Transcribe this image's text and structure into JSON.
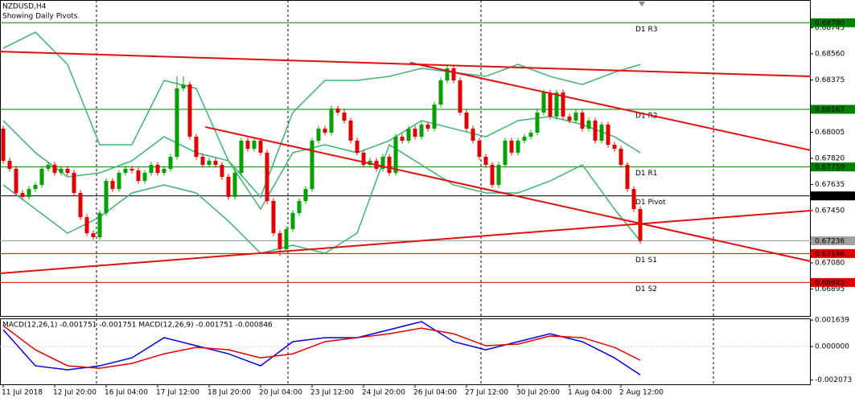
{
  "chart_data": {
    "type": "candlestick",
    "title": "NZDUSD,H4",
    "subtitle": "Showing Daily Pivots.",
    "categories": [
      "11 Jul 2018",
      null,
      null,
      null,
      null,
      null,
      null,
      null,
      "12 Jul 20:00",
      null,
      null,
      null,
      null,
      null,
      null,
      null,
      "16 Jul 04:00",
      null,
      null,
      null,
      null,
      null,
      null,
      null,
      "17 Jul 12:00",
      null,
      null,
      null,
      null,
      null,
      null,
      null,
      "18 Jul 20:00",
      null,
      null,
      null,
      null,
      null,
      null,
      null,
      "20 Jul 04:00",
      null,
      null,
      null,
      null,
      null,
      null,
      null,
      "23 Jul 12:00",
      null,
      null,
      null,
      null,
      null,
      null,
      null,
      "24 Jul 20:00",
      null,
      null,
      null,
      null,
      null,
      null,
      null,
      "26 Jul 04:00",
      null,
      null,
      null,
      null,
      null,
      null,
      null,
      "27 Jul 12:00",
      null,
      null,
      null,
      null,
      null,
      null,
      null,
      "30 Jul 20:00",
      null,
      null,
      null,
      null,
      null,
      null,
      null,
      "1 Aug 04:00",
      null,
      null,
      null,
      null,
      null,
      null,
      null,
      "2 Aug 12:00",
      null,
      null,
      null
    ],
    "xlim": [
      -0.5,
      125.5
    ],
    "ylim": [
      0.66704,
      0.68941
    ],
    "yticks": [
      0.68745,
      {
        "value": 0.6856,
        "label": "0.68560"
      },
      0.68375,
      0.68005,
      {
        "value": 0.6782,
        "label": "0.67820"
      },
      0.67635,
      {
        "value": 0.6745,
        "label": "0.67450"
      },
      {
        "value": 0.6708,
        "label": "0.67080"
      },
      0.66895
    ],
    "up_color": "#00a000",
    "down_color": "#e00000",
    "candles": [
      [
        0.6803,
        0.6805,
        0.67783,
        0.67803
      ],
      [
        0.67803,
        0.67823,
        0.67726,
        0.67746
      ],
      [
        0.67746,
        0.67766,
        0.67555,
        0.67575
      ],
      [
        0.67575,
        0.67595,
        0.67527,
        0.67547
      ],
      [
        0.67547,
        0.67623,
        0.67527,
        0.67603
      ],
      [
        0.67603,
        0.67652,
        0.67583,
        0.67632
      ],
      [
        0.67632,
        0.67766,
        0.67612,
        0.67746
      ],
      [
        0.67746,
        0.67794,
        0.67726,
        0.67774
      ],
      [
        0.67774,
        0.67794,
        0.67697,
        0.67717
      ],
      [
        0.67717,
        0.67766,
        0.67697,
        0.67746
      ],
      [
        0.67746,
        0.67766,
        0.67697,
        0.67717
      ],
      [
        0.67717,
        0.67737,
        0.67555,
        0.67575
      ],
      [
        0.67575,
        0.67595,
        0.67384,
        0.67404
      ],
      [
        0.67404,
        0.67424,
        0.6727,
        0.6729
      ],
      [
        0.6729,
        0.6731,
        0.67242,
        0.67262
      ],
      [
        0.67262,
        0.67453,
        0.67242,
        0.67433
      ],
      [
        0.67433,
        0.6768,
        0.67413,
        0.6766
      ],
      [
        0.6766,
        0.6768,
        0.67583,
        0.67603
      ],
      [
        0.67603,
        0.67737,
        0.67583,
        0.67717
      ],
      [
        0.67717,
        0.67766,
        0.67697,
        0.67746
      ],
      [
        0.67746,
        0.67766,
        0.67714,
        0.67734
      ],
      [
        0.67734,
        0.67754,
        0.6764,
        0.6766
      ],
      [
        0.6766,
        0.67737,
        0.6764,
        0.67717
      ],
      [
        0.67717,
        0.67794,
        0.67697,
        0.67774
      ],
      [
        0.67774,
        0.67794,
        0.67697,
        0.67717
      ],
      [
        0.67717,
        0.67766,
        0.67697,
        0.67746
      ],
      [
        0.67746,
        0.67851,
        0.67726,
        0.67831
      ],
      [
        0.67831,
        0.684,
        0.67811,
        0.68315
      ],
      [
        0.68315,
        0.684,
        0.68295,
        0.68343
      ],
      [
        0.68343,
        0.68363,
        0.67953,
        0.67973
      ],
      [
        0.67973,
        0.67993,
        0.67811,
        0.67831
      ],
      [
        0.67831,
        0.67851,
        0.67754,
        0.67774
      ],
      [
        0.67774,
        0.67823,
        0.67754,
        0.67803
      ],
      [
        0.67803,
        0.67823,
        0.67754,
        0.67774
      ],
      [
        0.67774,
        0.67794,
        0.67669,
        0.67689
      ],
      [
        0.67689,
        0.67709,
        0.67527,
        0.67547
      ],
      [
        0.67547,
        0.67737,
        0.67527,
        0.67717
      ],
      [
        0.67717,
        0.67965,
        0.67697,
        0.67945
      ],
      [
        0.67945,
        0.67965,
        0.67868,
        0.67888
      ],
      [
        0.67888,
        0.67965,
        0.67868,
        0.67945
      ],
      [
        0.67945,
        0.67965,
        0.6784,
        0.6786
      ],
      [
        0.6786,
        0.6788,
        0.67498,
        0.67518
      ],
      [
        0.67518,
        0.67538,
        0.6727,
        0.6729
      ],
      [
        0.6729,
        0.6731,
        0.6713,
        0.67177
      ],
      [
        0.67177,
        0.67339,
        0.67157,
        0.67319
      ],
      [
        0.67319,
        0.67453,
        0.67299,
        0.67433
      ],
      [
        0.67433,
        0.67538,
        0.67413,
        0.67518
      ],
      [
        0.67518,
        0.67623,
        0.67498,
        0.67603
      ],
      [
        0.67603,
        0.67965,
        0.67583,
        0.67945
      ],
      [
        0.67945,
        0.6805,
        0.67925,
        0.6803
      ],
      [
        0.6803,
        0.6805,
        0.67982,
        0.68002
      ],
      [
        0.68002,
        0.68192,
        0.67982,
        0.68172
      ],
      [
        0.68172,
        0.68192,
        0.68124,
        0.68144
      ],
      [
        0.68144,
        0.68164,
        0.68067,
        0.68087
      ],
      [
        0.68087,
        0.68107,
        0.67925,
        0.67945
      ],
      [
        0.67945,
        0.67965,
        0.6784,
        0.6786
      ],
      [
        0.6786,
        0.6788,
        0.67754,
        0.67774
      ],
      [
        0.67774,
        0.67823,
        0.67754,
        0.67803
      ],
      [
        0.67803,
        0.67823,
        0.67726,
        0.67746
      ],
      [
        0.67746,
        0.67851,
        0.67726,
        0.67831
      ],
      [
        0.67831,
        0.67851,
        0.67697,
        0.67717
      ],
      [
        0.67717,
        0.67993,
        0.67697,
        0.67973
      ],
      [
        0.67973,
        0.67993,
        0.67925,
        0.67945
      ],
      [
        0.67945,
        0.6805,
        0.67925,
        0.6803
      ],
      [
        0.6803,
        0.6805,
        0.67953,
        0.67973
      ],
      [
        0.67973,
        0.68079,
        0.67953,
        0.68059
      ],
      [
        0.68059,
        0.68079,
        0.6801,
        0.6803
      ],
      [
        0.6803,
        0.68221,
        0.6801,
        0.68201
      ],
      [
        0.68201,
        0.68392,
        0.68181,
        0.68372
      ],
      [
        0.68372,
        0.68477,
        0.68352,
        0.68457
      ],
      [
        0.68457,
        0.68477,
        0.68352,
        0.68372
      ],
      [
        0.68372,
        0.68392,
        0.68124,
        0.68144
      ],
      [
        0.68144,
        0.68164,
        0.6801,
        0.6803
      ],
      [
        0.6803,
        0.6805,
        0.67925,
        0.67945
      ],
      [
        0.67945,
        0.67965,
        0.67811,
        0.67831
      ],
      [
        0.67831,
        0.67851,
        0.67754,
        0.67774
      ],
      [
        0.67774,
        0.67794,
        0.67612,
        0.67632
      ],
      [
        0.67632,
        0.67794,
        0.67612,
        0.67774
      ],
      [
        0.67774,
        0.67965,
        0.67754,
        0.67945
      ],
      [
        0.67945,
        0.67965,
        0.6784,
        0.6786
      ],
      [
        0.6786,
        0.67965,
        0.6784,
        0.67945
      ],
      [
        0.67945,
        0.67993,
        0.67925,
        0.67973
      ],
      [
        0.67973,
        0.68022,
        0.67953,
        0.68002
      ],
      [
        0.68002,
        0.68164,
        0.67982,
        0.68144
      ],
      [
        0.68144,
        0.68306,
        0.68124,
        0.68286
      ],
      [
        0.68286,
        0.68306,
        0.68096,
        0.68116
      ],
      [
        0.68116,
        0.68306,
        0.68096,
        0.68286
      ],
      [
        0.68286,
        0.68306,
        0.68096,
        0.68116
      ],
      [
        0.68116,
        0.68136,
        0.68067,
        0.68087
      ],
      [
        0.68087,
        0.68164,
        0.68067,
        0.68144
      ],
      [
        0.68144,
        0.68164,
        0.6801,
        0.6803
      ],
      [
        0.6803,
        0.68107,
        0.6801,
        0.68087
      ],
      [
        0.68087,
        0.68107,
        0.67925,
        0.67945
      ],
      [
        0.67945,
        0.68079,
        0.67925,
        0.68059
      ],
      [
        0.68059,
        0.68079,
        0.67896,
        0.67916
      ],
      [
        0.67916,
        0.67936,
        0.67868,
        0.67888
      ],
      [
        0.67888,
        0.67908,
        0.67754,
        0.67774
      ],
      [
        0.67774,
        0.67794,
        0.67583,
        0.67603
      ],
      [
        0.67603,
        0.67623,
        0.67441,
        0.67461
      ],
      [
        0.67461,
        0.67481,
        0.67216,
        0.67236
      ]
    ],
    "bollinger": {
      "color": "#3cb371",
      "x": [
        0,
        5,
        10,
        15,
        20,
        25,
        30,
        35,
        40,
        45,
        50,
        55,
        60,
        65,
        70,
        75,
        80,
        85,
        90,
        95,
        99
      ],
      "upper": [
        0.68599,
        0.68713,
        0.68485,
        0.67916,
        0.67916,
        0.68372,
        0.68315,
        0.67803,
        0.67547,
        0.68144,
        0.68372,
        0.68372,
        0.684,
        0.68457,
        0.68429,
        0.684,
        0.68485,
        0.684,
        0.68343,
        0.68429,
        0.68485
      ],
      "middle": [
        0.68087,
        0.6786,
        0.67689,
        0.67717,
        0.67803,
        0.67973,
        0.6786,
        0.67803,
        0.67461,
        0.6786,
        0.67916,
        0.6786,
        0.67945,
        0.68087,
        0.6803,
        0.67973,
        0.68087,
        0.68116,
        0.68059,
        0.67973,
        0.6786
      ],
      "lower": [
        0.67632,
        0.67461,
        0.6729,
        0.67404,
        0.67575,
        0.67632,
        0.67575,
        0.67376,
        0.67148,
        0.67205,
        0.67148,
        0.6729,
        0.67916,
        0.67774,
        0.67632,
        0.67575,
        0.67575,
        0.6766,
        0.67774,
        0.67461,
        0.67234
      ]
    },
    "trendline_color": "#e01010",
    "trendlines": [
      {
        "x": [
          -0.5,
          125.5
        ],
        "y": [
          0.68576,
          0.684
        ]
      },
      {
        "x": [
          31.4,
          125.5
        ],
        "y": [
          0.68042,
          0.67091
        ]
      },
      {
        "x": [
          -0.5,
          125.5
        ],
        "y": [
          0.67006,
          0.6745
        ]
      },
      {
        "x": [
          63.25,
          125.5
        ],
        "y": [
          0.68497,
          0.67877
        ]
      }
    ],
    "pivots": [
      {
        "name": "D1 R3",
        "value": 0.6878,
        "label": "0.68780",
        "color": "#008000"
      },
      {
        "name": "D1 R2",
        "value": 0.68167,
        "label": "0.68167",
        "color": "#008000"
      },
      {
        "name": "D1 R1",
        "value": 0.67759,
        "label": "0.67759",
        "color": "#008000"
      },
      {
        "name": "D1 Pivot",
        "value": 0.67554,
        "label": "0.67554",
        "color": "#000000"
      },
      {
        "name": "D1 S1",
        "value": 0.67146,
        "label": "0.67146",
        "color": "#e00000"
      },
      {
        "name": "D1 S2",
        "value": 0.66941,
        "label": "0.66941",
        "color": "#e00000"
      }
    ],
    "current_price": {
      "value": 0.67236,
      "label": "0.67236",
      "color": "#a0a0a0"
    },
    "macd": {
      "type": "line",
      "title": "MACD(12,26,1) -0.001751 -0.001751 MACD(12,26,9) -0.001751 -0.000846",
      "ylim": [
        -0.002334,
        0.00174
      ],
      "yticks": [
        0.001639,
        {
          "value": 0,
          "label": "0.000000"
        },
        -0.002073
      ],
      "x": [
        0,
        5,
        10,
        15,
        20,
        25,
        30,
        35,
        40,
        45,
        50,
        55,
        60,
        65,
        70,
        75,
        80,
        85,
        90,
        95,
        99
      ],
      "series": [
        {
          "color": "#0000e0",
          "values": [
            0.00104,
            -0.00119,
            -0.00144,
            -0.00119,
            -0.0007,
            0.00055,
            5e-05,
            -0.00045,
            -0.00119,
            0.0003,
            0.00055,
            0.00055,
            0.00104,
            0.00154,
            0.0003,
            -0.0002,
            0.0003,
            0.00079,
            0.0003,
            -0.0007,
            -0.00175
          ]
        },
        {
          "color": "#e00000",
          "values": [
            0.00129,
            -0.0002,
            -0.00119,
            -0.00134,
            -0.00104,
            -0.00045,
            -5e-05,
            -0.0002,
            -0.0007,
            -0.00045,
            0.0003,
            0.00055,
            0.00079,
            0.00114,
            0.00079,
            5e-05,
            0.00015,
            0.00065,
            0.00055,
            -5e-05,
            -0.00085
          ]
        }
      ]
    }
  }
}
